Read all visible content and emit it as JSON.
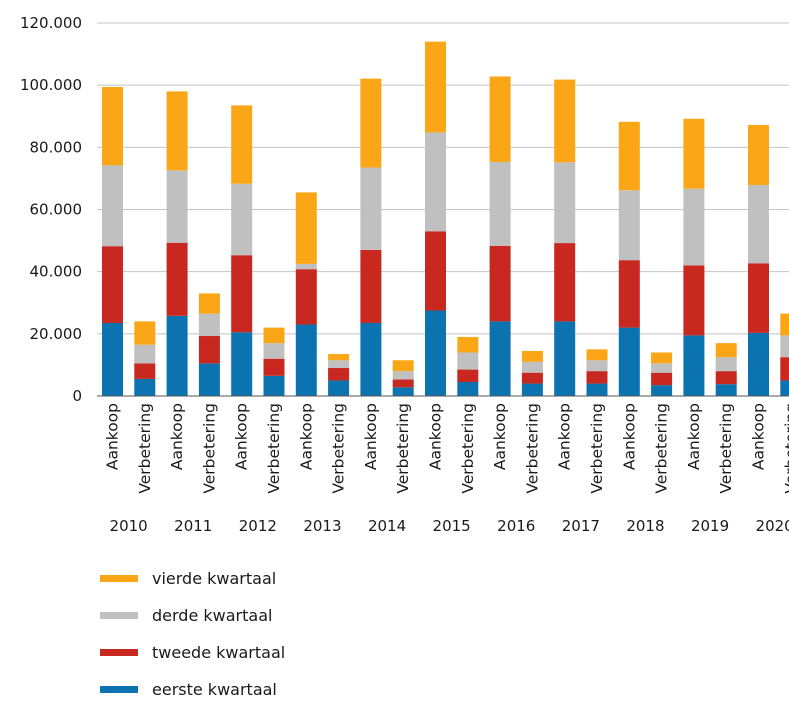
{
  "chart_data": {
    "type": "bar",
    "stacked": true,
    "title": "",
    "xlabel": "",
    "ylabel": "",
    "ylim": [
      0,
      120000
    ],
    "yticks": [
      0,
      20000,
      40000,
      60000,
      80000,
      100000,
      120000
    ],
    "ytick_labels": [
      "0",
      "20.000",
      "40.000",
      "60.000",
      "80.000",
      "100.000",
      "120.000"
    ],
    "grid": true,
    "legend_position": "bottom",
    "categories": [
      "Aankoop",
      "Verbetering",
      "Aankoop",
      "Verbetering",
      "Aankoop",
      "Verbetering",
      "Aankoop",
      "Verbetering",
      "Aankoop",
      "Verbetering",
      "Aankoop",
      "Verbetering",
      "Aankoop",
      "Verbetering",
      "Aankoop",
      "Verbetering",
      "Aankoop",
      "Verbetering",
      "Aankoop",
      "Verbetering",
      "Aankoop",
      "Verbetering"
    ],
    "years": [
      "2010",
      "2011",
      "2012",
      "2013",
      "2014",
      "2015",
      "2016",
      "2017",
      "2018",
      "2019",
      "2020"
    ],
    "series": [
      {
        "name": "eerste kwartaal",
        "color": "#0b74b0",
        "values": [
          23500,
          5500,
          25800,
          10500,
          20500,
          6500,
          23000,
          5000,
          23500,
          2800,
          27500,
          4500,
          24000,
          4000,
          24000,
          4000,
          22000,
          3500,
          19500,
          3800,
          20300,
          5000
        ]
      },
      {
        "name": "tweede kwartaal",
        "color": "#c8281f",
        "values": [
          24700,
          5000,
          23500,
          8800,
          24800,
          5500,
          17800,
          4000,
          23500,
          2500,
          25500,
          4000,
          24300,
          3500,
          25200,
          4000,
          21700,
          4000,
          22500,
          4200,
          22400,
          7500
        ]
      },
      {
        "name": "derde kwartaal",
        "color": "#c0c0c0",
        "values": [
          26000,
          6000,
          23300,
          7200,
          23000,
          5000,
          1700,
          2500,
          26500,
          2700,
          31800,
          5500,
          27000,
          3500,
          26000,
          3500,
          22500,
          3000,
          24700,
          4500,
          25200,
          7000
        ]
      },
      {
        "name": "vierde kwartaal",
        "color": "#fba616",
        "values": [
          25200,
          7500,
          25400,
          6500,
          25200,
          5000,
          23000,
          2000,
          28600,
          3500,
          29200,
          5000,
          27500,
          3500,
          26600,
          3500,
          22000,
          3500,
          22500,
          4500,
          19300,
          7000
        ]
      }
    ]
  },
  "legend": {
    "items": [
      {
        "label": "vierde kwartaal",
        "color": "#fba616"
      },
      {
        "label": "derde kwartaal",
        "color": "#c0c0c0"
      },
      {
        "label": "tweede kwartaal",
        "color": "#c8281f"
      },
      {
        "label": "eerste kwartaal",
        "color": "#0b74b0"
      }
    ]
  }
}
